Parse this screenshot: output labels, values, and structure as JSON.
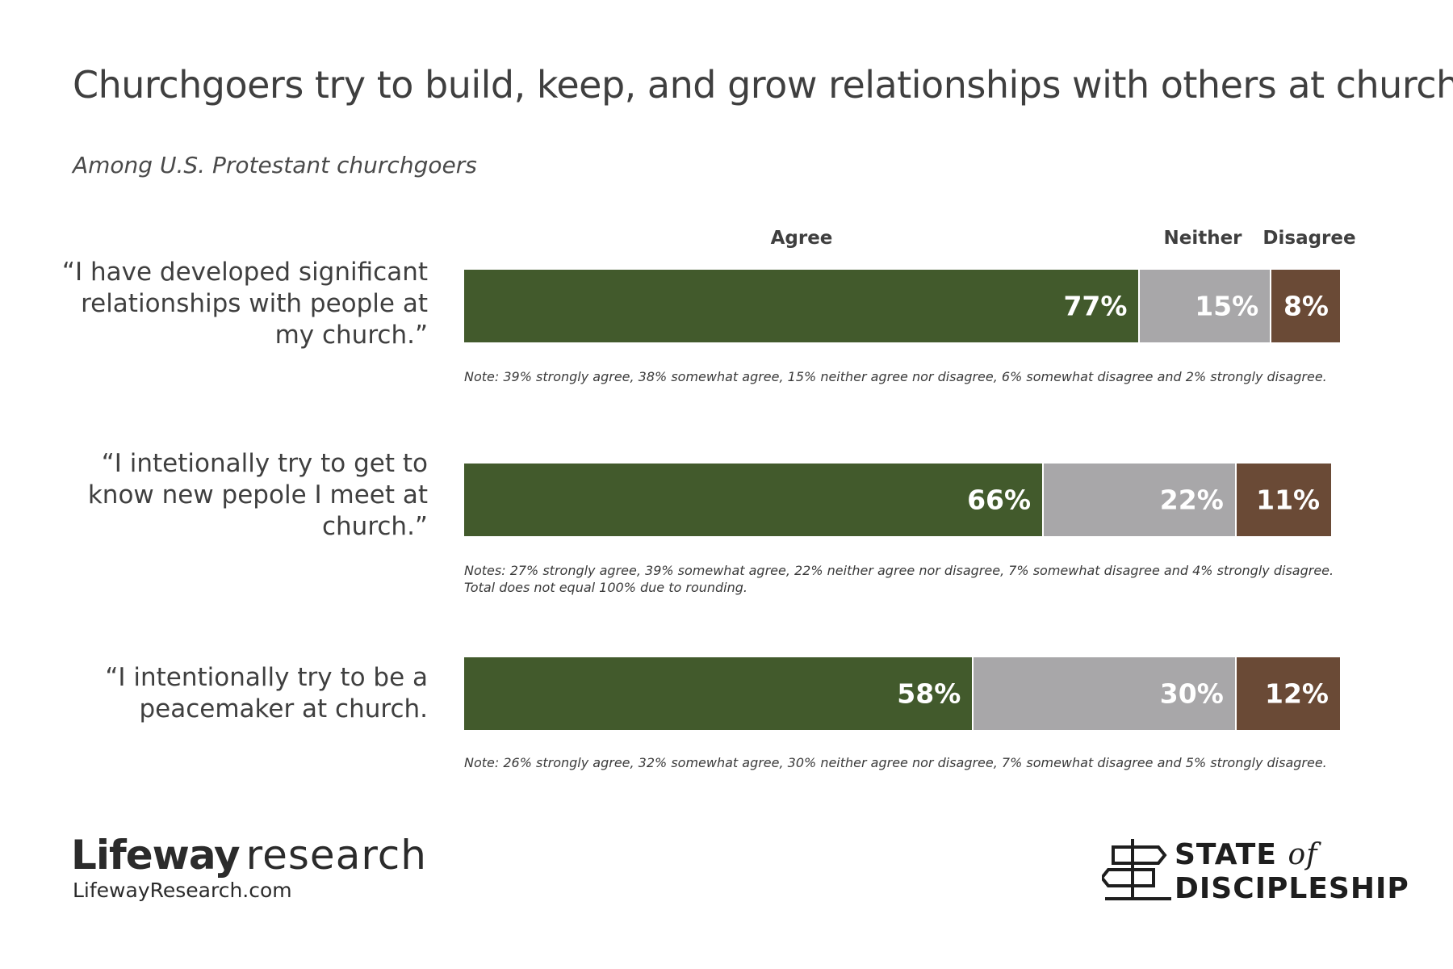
{
  "chart_data": {
    "type": "bar",
    "orientation": "horizontal",
    "stacked": true,
    "title": "Churchgoers try to build, keep, and grow relationships with others at church",
    "subtitle": "Among U.S. Protestant churchgoers",
    "column_headers": [
      "Agree",
      "Neither",
      "Disagree"
    ],
    "categories": [
      "“I have developed significant relationships with people at my church.”",
      "“I intetionally try to get to know new pepole I meet at church.”",
      "“I intentionally try to be a peacemaker at church."
    ],
    "series": [
      {
        "name": "Agree",
        "values": [
          77,
          66,
          58
        ],
        "labels": [
          "77%",
          "66%",
          "58%"
        ]
      },
      {
        "name": "Neither",
        "values": [
          15,
          22,
          30
        ],
        "labels": [
          "15%",
          "22%",
          "30%"
        ]
      },
      {
        "name": "Disagree",
        "values": [
          8,
          11,
          12
        ],
        "labels": [
          "8%",
          "11%",
          "12%"
        ]
      }
    ],
    "notes": [
      [
        "Note: 39% strongly agree, 38% somewhat agree, 15% neither agree nor disagree, 6% somewhat disagree and 2% strongly disagree."
      ],
      [
        "Notes: 27% strongly agree, 39% somewhat agree, 22% neither agree nor disagree, 7% somewhat disagree and 4% strongly disagree.",
        "Total does not equal 100% due to rounding."
      ],
      [
        "Note: 26% strongly agree, 32% somewhat agree, 30% neither agree nor disagree, 7% somewhat disagree and 5% strongly disagree."
      ]
    ],
    "colors": {
      "Agree": "#425a2c",
      "Neither": "#a8a7a9",
      "Disagree": "#6a4a36"
    },
    "xlim": [
      0,
      100
    ]
  },
  "branding": {
    "lifeway_bold": "Lifeway",
    "lifeway_light": "research",
    "url": "LifewayResearch.com",
    "sod_line1": "STATE",
    "sod_of": "of",
    "sod_line2": "DISCIPLESHIP",
    "sod_icon": "signpost-icon"
  }
}
